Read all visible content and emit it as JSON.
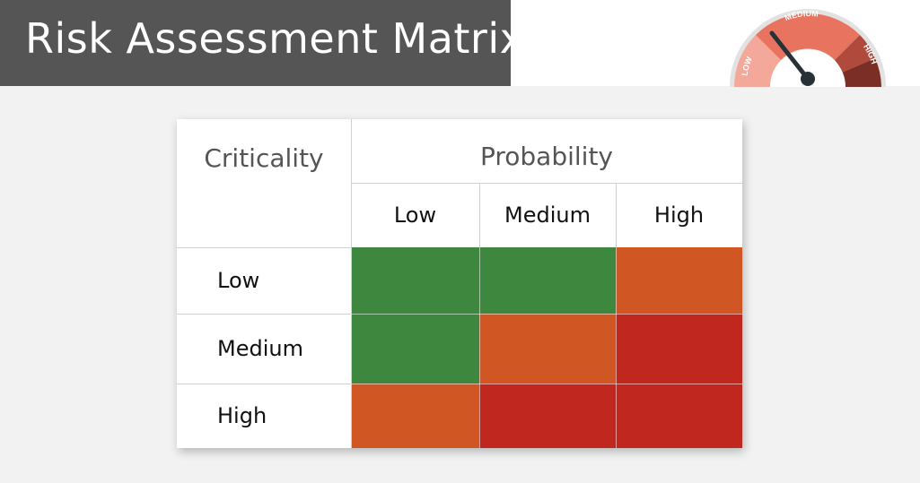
{
  "header": {
    "title": "Risk Assessment Matrix"
  },
  "gauge": {
    "labels": [
      "LOW",
      "MEDIUM",
      "HIGH"
    ],
    "colors": [
      "#f4a89a",
      "#e8735e",
      "#b04a3c",
      "#7a2e26"
    ],
    "level": "medium"
  },
  "matrix": {
    "row_header": "Criticality",
    "col_header": "Probability",
    "columns": [
      "Low",
      "Medium",
      "High"
    ],
    "rows": [
      {
        "label": "Low",
        "cells": [
          "low",
          "low",
          "medium"
        ]
      },
      {
        "label": "Medium",
        "cells": [
          "low",
          "medium",
          "high"
        ]
      },
      {
        "label": "High",
        "cells": [
          "medium",
          "high",
          "high"
        ]
      }
    ],
    "colors": {
      "low": "#3e873e",
      "medium": "#d05724",
      "high": "#c0271f"
    }
  }
}
